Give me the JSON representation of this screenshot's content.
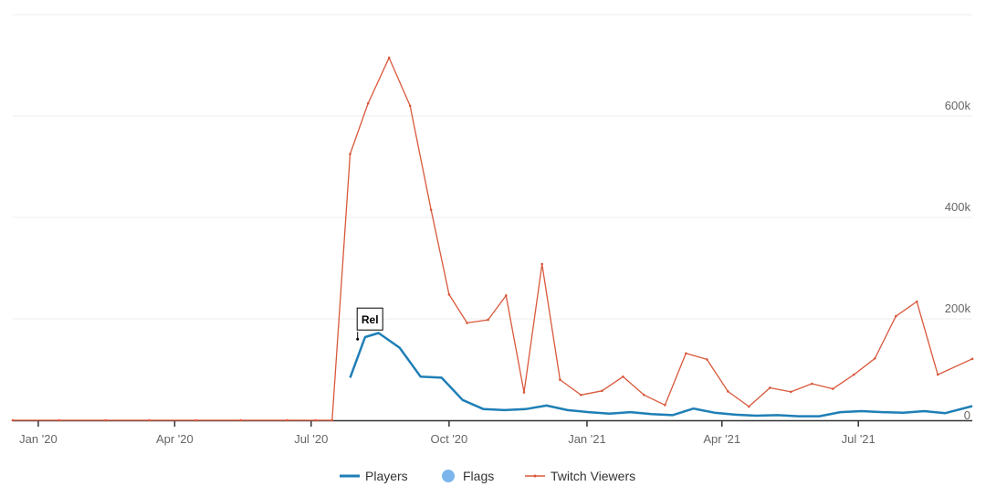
{
  "chart_data": {
    "type": "line",
    "title": "",
    "xlabel": "",
    "ylabel": "",
    "x_range": [
      "2019-12-15",
      "2021-09-15"
    ],
    "y_range": [
      0,
      800000
    ],
    "grid": true,
    "legend_placement": "bottom-center",
    "x_ticks": [
      {
        "date": "2020-01-01",
        "label": "Jan '20"
      },
      {
        "date": "2020-04-01",
        "label": "Apr '20"
      },
      {
        "date": "2020-07-01",
        "label": "Jul '20"
      },
      {
        "date": "2020-10-01",
        "label": "Oct '20"
      },
      {
        "date": "2021-01-01",
        "label": "Jan '21"
      },
      {
        "date": "2021-04-01",
        "label": "Apr '21"
      },
      {
        "date": "2021-07-01",
        "label": "Jul '21"
      }
    ],
    "y_ticks": [
      {
        "value": 0,
        "label": "0"
      },
      {
        "value": 200000,
        "label": "200k"
      },
      {
        "value": 400000,
        "label": "400k"
      },
      {
        "value": 600000,
        "label": "600k"
      }
    ],
    "series": [
      {
        "name": "Players",
        "color": "#1f7fb6",
        "points": [
          [
            "2020-07-27",
            84000
          ],
          [
            "2020-08-06",
            164000
          ],
          [
            "2020-08-15",
            172000
          ],
          [
            "2020-08-29",
            143000
          ],
          [
            "2020-09-12",
            86000
          ],
          [
            "2020-09-26",
            84000
          ],
          [
            "2020-10-10",
            40000
          ],
          [
            "2020-10-24",
            22000
          ],
          [
            "2020-11-07",
            20000
          ],
          [
            "2020-11-21",
            22000
          ],
          [
            "2020-12-05",
            29000
          ],
          [
            "2020-12-19",
            20000
          ],
          [
            "2021-01-02",
            16000
          ],
          [
            "2021-01-16",
            13000
          ],
          [
            "2021-01-30",
            16000
          ],
          [
            "2021-02-13",
            12000
          ],
          [
            "2021-02-27",
            10000
          ],
          [
            "2021-03-13",
            23000
          ],
          [
            "2021-03-27",
            15000
          ],
          [
            "2021-04-10",
            11000
          ],
          [
            "2021-04-24",
            9000
          ],
          [
            "2021-05-08",
            10000
          ],
          [
            "2021-05-22",
            8000
          ],
          [
            "2021-06-05",
            8000
          ],
          [
            "2021-06-19",
            16000
          ],
          [
            "2021-07-03",
            18000
          ],
          [
            "2021-07-17",
            16000
          ],
          [
            "2021-07-31",
            15000
          ],
          [
            "2021-08-14",
            18000
          ],
          [
            "2021-08-28",
            14000
          ],
          [
            "2021-09-15",
            28000
          ]
        ]
      },
      {
        "name": "Flags",
        "color": "#7cb5ec",
        "points": []
      },
      {
        "name": "Twitch Viewers",
        "color": "#d9583b",
        "points": [
          [
            "2019-12-15",
            0
          ],
          [
            "2020-01-15",
            0
          ],
          [
            "2020-02-15",
            0
          ],
          [
            "2020-03-15",
            0
          ],
          [
            "2020-04-15",
            0
          ],
          [
            "2020-05-15",
            0
          ],
          [
            "2020-06-15",
            0
          ],
          [
            "2020-07-04",
            0
          ],
          [
            "2020-07-15",
            0
          ],
          [
            "2020-07-27",
            525000
          ],
          [
            "2020-08-08",
            625000
          ],
          [
            "2020-08-22",
            715000
          ],
          [
            "2020-09-05",
            620000
          ],
          [
            "2020-09-19",
            415000
          ],
          [
            "2020-10-01",
            248000
          ],
          [
            "2020-10-13",
            192000
          ],
          [
            "2020-10-27",
            198000
          ],
          [
            "2020-11-08",
            246000
          ],
          [
            "2020-11-20",
            55000
          ],
          [
            "2020-12-02",
            308000
          ],
          [
            "2020-12-14",
            80000
          ],
          [
            "2020-12-28",
            50000
          ],
          [
            "2021-01-11",
            58000
          ],
          [
            "2021-01-25",
            86000
          ],
          [
            "2021-02-08",
            50000
          ],
          [
            "2021-02-22",
            30000
          ],
          [
            "2021-03-08",
            132000
          ],
          [
            "2021-03-22",
            120000
          ],
          [
            "2021-04-05",
            57000
          ],
          [
            "2021-04-19",
            27000
          ],
          [
            "2021-05-03",
            64000
          ],
          [
            "2021-05-17",
            56000
          ],
          [
            "2021-05-31",
            72000
          ],
          [
            "2021-06-14",
            62000
          ],
          [
            "2021-06-28",
            90000
          ],
          [
            "2021-07-12",
            122000
          ],
          [
            "2021-07-26",
            205000
          ],
          [
            "2021-08-09",
            234000
          ],
          [
            "2021-08-23",
            90000
          ],
          [
            "2021-09-15",
            121000
          ]
        ]
      }
    ],
    "annotations": [
      {
        "type": "flag",
        "label": "Rel",
        "date": "2020-08-01",
        "value": 160000
      }
    ]
  }
}
